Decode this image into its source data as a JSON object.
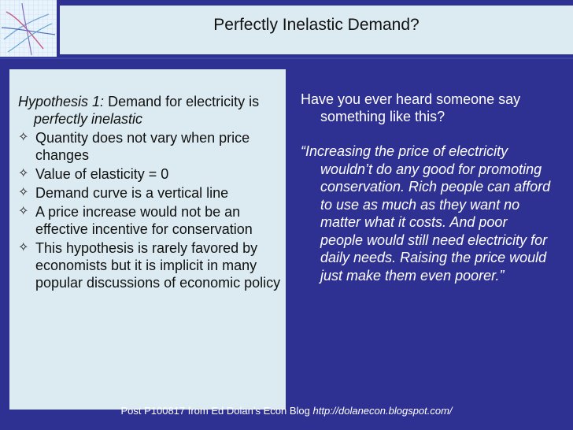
{
  "slide": {
    "title": "Perfectly Inelastic Demand?",
    "left_panel": {
      "hypothesis_label": "Hypothesis 1:",
      "hypothesis_text": " Demand for electricity is ",
      "hypothesis_emphasis": "perfectly inelastic",
      "bullet_marker": "✧",
      "bullets": [
        "Quantity does not vary when price changes",
        "Value of elasticity = 0",
        "Demand curve is a vertical line",
        "A price increase would not be an effective incentive for conservation",
        "This hypothesis is rarely favored by economists but it is implicit in many popular discussions of economic policy"
      ]
    },
    "right_column": {
      "question": "Have you ever heard someone say something like this?",
      "quote": "“Increasing the price of electricity wouldn’t do any good for promoting conservation. Rich people can afford to use as much as they want no matter what it costs. And poor people would still need electricity for daily needs. Raising the price would just make them even poorer.”"
    },
    "footer": {
      "text": "Post P100817 from Ed Dolan’s Econ Blog ",
      "url": "http://dolanecon.blogspot.com/"
    }
  },
  "colors": {
    "background": "#2E3192",
    "panel": "#DCEBF1",
    "text_dark": "#111111",
    "text_light": "#FFFFFF"
  }
}
